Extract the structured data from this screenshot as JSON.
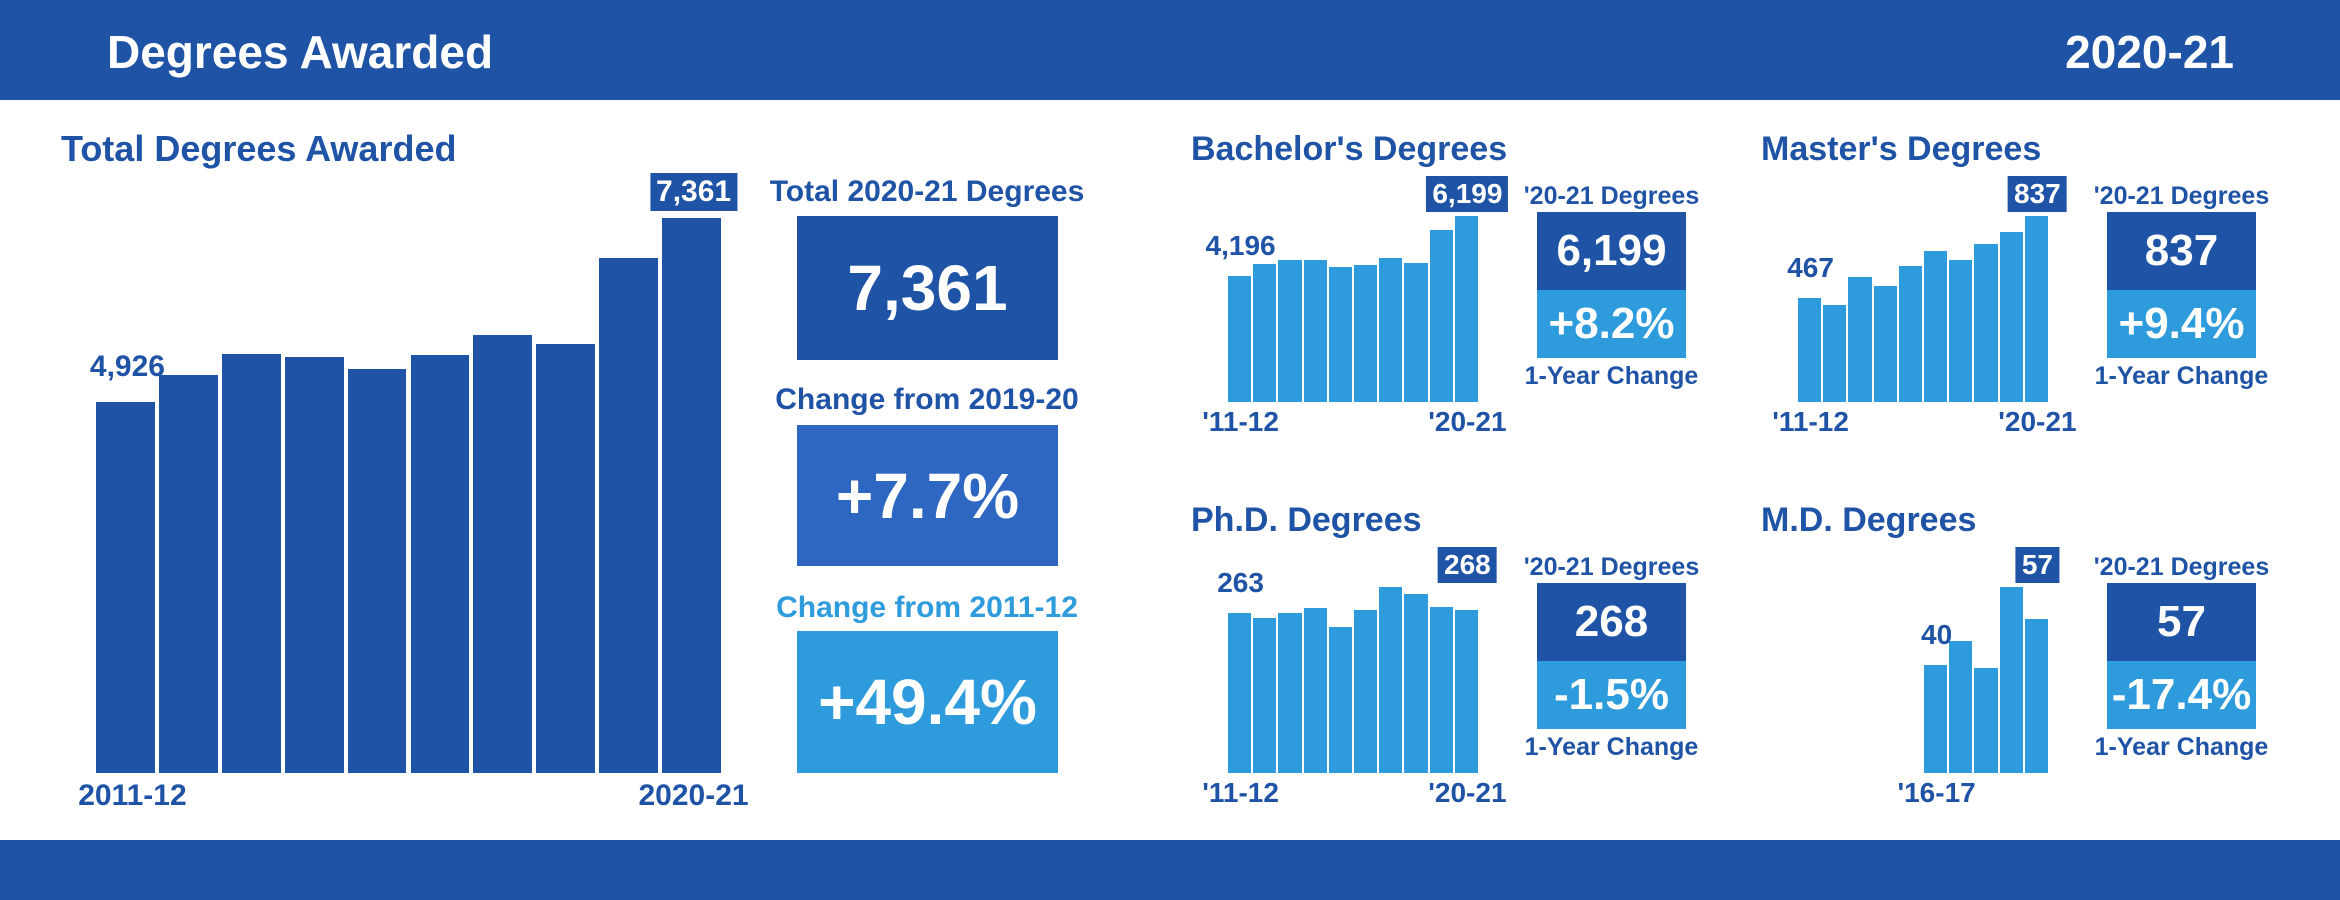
{
  "header": {
    "title": "Degrees Awarded",
    "year": "2020-21"
  },
  "summary": {
    "total_label": "Total 2020-21 Degrees",
    "total_value": "7,361",
    "change_1yr_label": "Change from 2019-20",
    "change_1yr_value": "+7.7%",
    "change_10yr_label": "Change from 2011-12",
    "change_10yr_value": "+49.4%"
  },
  "colors": {
    "dark": "#1f53a5",
    "mid": "#2e67c2",
    "light": "#2e9bdc"
  },
  "panels_text": {
    "degrees_label": "'20-21 Degrees",
    "change_label": "1-Year Change"
  },
  "chart_data": [
    {
      "type": "bar",
      "title": "Total Degrees Awarded",
      "categories": [
        "2011-12",
        "2012-13",
        "2013-14",
        "2014-15",
        "2015-16",
        "2016-17",
        "2017-18",
        "2018-19",
        "2019-20",
        "2020-21"
      ],
      "values": [
        4926,
        5279,
        5560,
        5516,
        5360,
        5547,
        5810,
        5691,
        6834,
        7361
      ],
      "first_label": "4,926",
      "last_label": "7,361",
      "x_first": "2011-12",
      "x_last": "2020-21"
    },
    {
      "type": "bar",
      "title": "Bachelor's Degrees",
      "categories": [
        "2011-12",
        "2012-13",
        "2013-14",
        "2014-15",
        "2015-16",
        "2016-17",
        "2017-18",
        "2018-19",
        "2019-20",
        "2020-21"
      ],
      "values": [
        4196,
        4589,
        4733,
        4733,
        4492,
        4556,
        4798,
        4621,
        5729,
        6199
      ],
      "first_label": "4,196",
      "last_label": "6,199",
      "x_first": "'11-12",
      "x_last": "'20-21",
      "stat_value": "6,199",
      "stat_change": "+8.2%"
    },
    {
      "type": "bar",
      "title": "Master's Degrees",
      "categories": [
        "2011-12",
        "2012-13",
        "2013-14",
        "2014-15",
        "2015-16",
        "2016-17",
        "2017-18",
        "2018-19",
        "2019-20",
        "2020-21"
      ],
      "values": [
        467,
        437,
        561,
        524,
        611,
        680,
        639,
        709,
        765,
        837
      ],
      "first_label": "467",
      "last_label": "837",
      "x_first": "'11-12",
      "x_last": "'20-21",
      "stat_value": "837",
      "stat_change": "+9.4%"
    },
    {
      "type": "bar",
      "title": "Ph.D. Degrees",
      "categories": [
        "2011-12",
        "2012-13",
        "2013-14",
        "2014-15",
        "2015-16",
        "2016-17",
        "2017-18",
        "2018-19",
        "2019-20",
        "2020-21"
      ],
      "values": [
        263,
        254,
        263,
        271,
        239,
        268,
        305,
        293,
        272,
        268
      ],
      "first_label": "263",
      "last_label": "268",
      "x_first": "'11-12",
      "x_last": "'20-21",
      "stat_value": "268",
      "stat_change": "-1.5%"
    },
    {
      "type": "bar",
      "title": "M.D. Degrees",
      "categories": [
        "2016-17",
        "2017-18",
        "2018-19",
        "2019-20",
        "2020-21"
      ],
      "values": [
        40,
        49,
        39,
        69,
        57
      ],
      "first_label": "40",
      "last_label": "57",
      "x_first": "'16-17",
      "x_last": "",
      "stat_value": "57",
      "stat_change": "-17.4%"
    }
  ]
}
